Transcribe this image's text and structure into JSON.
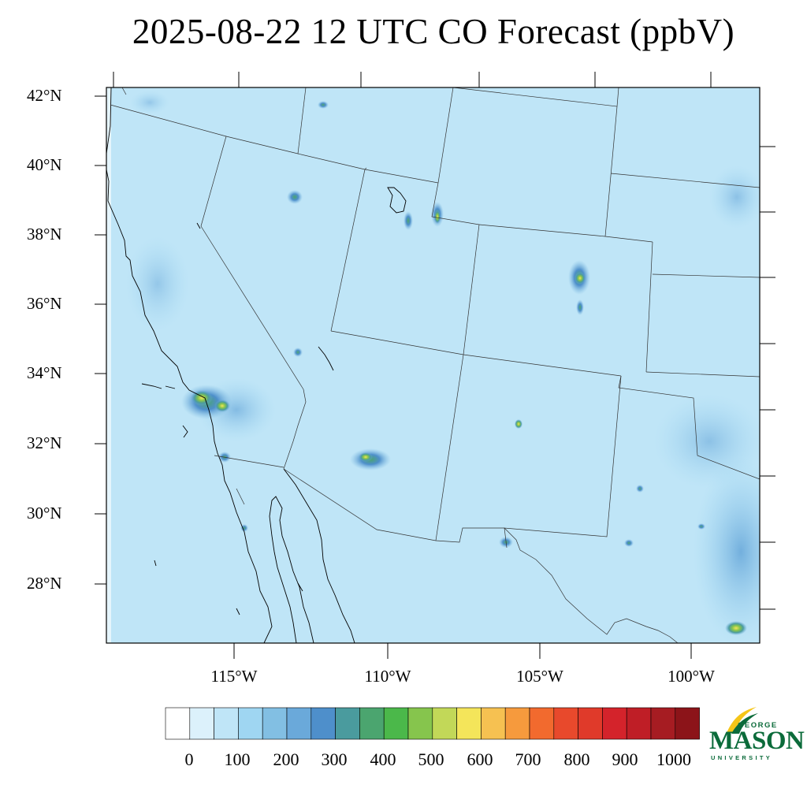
{
  "title": "2025-08-22 12 UTC CO Forecast (ppbV)",
  "map": {
    "lat_labels": [
      "42°N",
      "40°N",
      "38°N",
      "36°N",
      "34°N",
      "32°N",
      "30°N",
      "28°N"
    ],
    "lon_labels": [
      "115°W",
      "110°W",
      "105°W",
      "100°W"
    ],
    "background_color": "#bfe5f7",
    "coast_color": "#000000"
  },
  "colorbar": {
    "colors": [
      "#ffffff",
      "#dcf1fb",
      "#bfe5f7",
      "#9fd6f2",
      "#82bfe3",
      "#6aa9da",
      "#4e8fcb",
      "#4a9b9e",
      "#4ba56f",
      "#4bb84a",
      "#86c54d",
      "#c2d858",
      "#f4e55a",
      "#f6c151",
      "#f69a3d",
      "#f26a2e",
      "#e8492c",
      "#e03a2a",
      "#d4232b",
      "#bf1e26",
      "#a61c22",
      "#8c1419"
    ],
    "labels": [
      "0",
      "100",
      "200",
      "300",
      "400",
      "500",
      "600",
      "700",
      "800",
      "900",
      "1000"
    ]
  },
  "logo": {
    "top": "GEORGE",
    "main": "MASON",
    "bottom": "UNIVERSITY",
    "color": "#0b6b3a",
    "accent": "#f5c518"
  }
}
